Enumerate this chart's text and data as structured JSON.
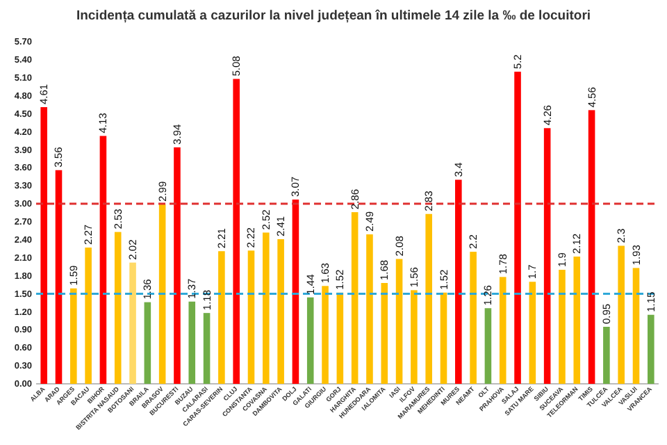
{
  "chart_data": {
    "type": "bar",
    "title": "Incidența cumulată a cazurilor la nivel județean în ultimele 14 zile la ‰ de locuitori",
    "categories": [
      "ALBA",
      "ARAD",
      "ARGES",
      "BACAU",
      "BIHOR",
      "BISTRITA NASAUD",
      "BOTOSANI",
      "BRAILA",
      "BRASOV",
      "BUCURESTI",
      "BUZAU",
      "CALARASI",
      "CARAS-SEVERIN",
      "CLUJ",
      "CONSTANTA",
      "COVASNA",
      "DAMBOVITA",
      "DOLJ",
      "GALATI",
      "GIURGIU",
      "GORJ",
      "HARGHITA",
      "HUNEDOARA",
      "IALOMITA",
      "IASI",
      "ILFOV",
      "MARAMURES",
      "MEHEDINTI",
      "MURES",
      "NEAMT",
      "OLT",
      "PRAHOVA",
      "SALAJ",
      "SATU MARE",
      "SIBIU",
      "SUCEAVA",
      "TELEORMAN",
      "TIMIS",
      "TULCEA",
      "VALCEA",
      "VASLUI",
      "VRANCEA"
    ],
    "values": [
      4.61,
      3.56,
      1.59,
      2.27,
      4.13,
      2.53,
      2.02,
      1.36,
      2.99,
      3.94,
      1.37,
      1.18,
      2.21,
      5.08,
      2.22,
      2.52,
      2.41,
      3.07,
      1.44,
      1.63,
      1.52,
      2.86,
      2.49,
      1.68,
      2.08,
      1.56,
      2.83,
      1.52,
      3.4,
      2.2,
      1.26,
      1.78,
      5.2,
      1.7,
      4.26,
      1.9,
      2.12,
      4.56,
      0.95,
      2.3,
      1.93,
      1.15
    ],
    "colors": [
      "#ff0000",
      "#ff0000",
      "#ffc000",
      "#ffc000",
      "#ff0000",
      "#ffc000",
      "#ffd966",
      "#70ad47",
      "#ffc000",
      "#ff0000",
      "#70ad47",
      "#70ad47",
      "#ffc000",
      "#ff0000",
      "#ffc000",
      "#ffc000",
      "#ffc000",
      "#ff0000",
      "#70ad47",
      "#ffc000",
      "#ffc000",
      "#ffc000",
      "#ffc000",
      "#ffc000",
      "#ffc000",
      "#ffc000",
      "#ffc000",
      "#ffc000",
      "#ff0000",
      "#ffc000",
      "#70ad47",
      "#ffc000",
      "#ff0000",
      "#ffc000",
      "#ff0000",
      "#ffc000",
      "#ffc000",
      "#ff0000",
      "#70ad47",
      "#ffc000",
      "#ffc000",
      "#70ad47"
    ],
    "ylim": [
      0,
      5.7
    ],
    "yticks": [
      {
        "value": 0,
        "label": "0.00"
      },
      {
        "value": 0.3,
        "label": "0.30"
      },
      {
        "value": 0.6,
        "label": "0.60"
      },
      {
        "value": 0.9,
        "label": "0.90"
      },
      {
        "value": 1.2,
        "label": "1.20"
      },
      {
        "value": 1.5,
        "label": "1.50"
      },
      {
        "value": 1.8,
        "label": "1.80"
      },
      {
        "value": 2.1,
        "label": "2.10"
      },
      {
        "value": 2.4,
        "label": "2.40"
      },
      {
        "value": 2.7,
        "label": "2.70"
      },
      {
        "value": 3,
        "label": "3.00"
      },
      {
        "value": 3.3,
        "label": "3.30"
      },
      {
        "value": 3.6,
        "label": "3.60"
      },
      {
        "value": 3.9,
        "label": "3.90"
      },
      {
        "value": 4.2,
        "label": "4.20"
      },
      {
        "value": 4.5,
        "label": "4.50"
      },
      {
        "value": 4.8,
        "label": "4.80"
      },
      {
        "value": 5.1,
        "label": "5.10"
      },
      {
        "value": 5.4,
        "label": "5.40"
      },
      {
        "value": 5.7,
        "label": "5.70"
      }
    ],
    "ref_lines": [
      {
        "axis": "y",
        "value": 3,
        "color": "#e03030",
        "line_style": "dashed"
      },
      {
        "axis": "y",
        "value": 1.5,
        "color": "#2ea8d8",
        "line_style": "dashed"
      }
    ],
    "data_labels": true,
    "grid": false
  }
}
